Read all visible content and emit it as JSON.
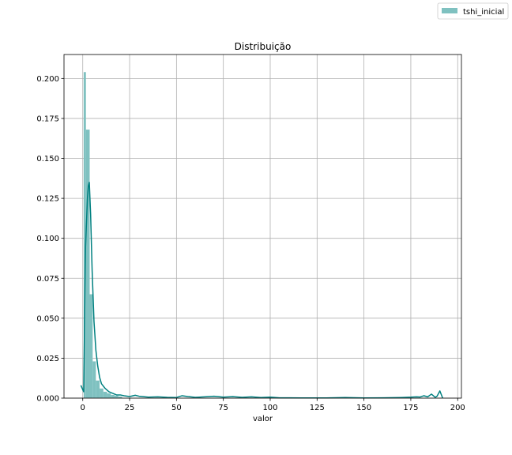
{
  "chart_data": {
    "type": "histogram",
    "title": "Distribuição",
    "xlabel": "valor",
    "ylabel": "",
    "xlim": [
      -10,
      202
    ],
    "ylim": [
      0,
      0.215
    ],
    "xticks": [
      0,
      25,
      50,
      75,
      100,
      125,
      150,
      175,
      200
    ],
    "yticks": [
      0.0,
      0.025,
      0.05,
      0.075,
      0.1,
      0.125,
      0.15,
      0.175,
      0.2
    ],
    "ytick_labels": [
      "0.000",
      "0.025",
      "0.050",
      "0.075",
      "0.100",
      "0.125",
      "0.150",
      "0.175",
      "0.200"
    ],
    "grid": true,
    "legend_position": "top-right (outside axes)",
    "colors": {
      "bar": "#7fc1c0",
      "line": "#008080"
    },
    "series": [
      {
        "name": "tshi_inicial",
        "bins": [
          {
            "x0": 0.5,
            "x1": 1.7,
            "value": 0.204
          },
          {
            "x0": 1.7,
            "x1": 3.7,
            "value": 0.168
          },
          {
            "x0": 3.7,
            "x1": 5.3,
            "value": 0.065
          },
          {
            "x0": 5.3,
            "x1": 7.0,
            "value": 0.023
          },
          {
            "x0": 7.0,
            "x1": 9.0,
            "value": 0.011
          },
          {
            "x0": 9.0,
            "x1": 11.0,
            "value": 0.006
          },
          {
            "x0": 11.0,
            "x1": 13.0,
            "value": 0.004
          },
          {
            "x0": 13.0,
            "x1": 15.0,
            "value": 0.003
          },
          {
            "x0": 15.0,
            "x1": 17.0,
            "value": 0.002
          },
          {
            "x0": 17.0,
            "x1": 19.0,
            "value": 0.0015
          },
          {
            "x0": 19.0,
            "x1": 21.0,
            "value": 0.001
          }
        ],
        "kde": {
          "x": [
            -1,
            0.5,
            1.5,
            2.5,
            3.0,
            3.5,
            4.2,
            5.0,
            6.0,
            7.0,
            8.0,
            9.0,
            10.0,
            12.0,
            14.0,
            16.0,
            18.0,
            20.0,
            22.0,
            25.0,
            28.0,
            30.0,
            35.0,
            40.0,
            45.0,
            50.0,
            53.0,
            56.0,
            60.0,
            65.0,
            70.0,
            75.0,
            80.0,
            85.0,
            90.0,
            95.0,
            100.0,
            105.0,
            110.0,
            120.0,
            130.0,
            140.0,
            150.0,
            160.0,
            170.0,
            175.0,
            178.0,
            180.0,
            182.0,
            184.0,
            186.0,
            188.0,
            189.0,
            190.5,
            192.0
          ],
          "y": [
            0.008,
            0.004,
            0.095,
            0.125,
            0.133,
            0.135,
            0.115,
            0.08,
            0.048,
            0.03,
            0.02,
            0.013,
            0.009,
            0.006,
            0.004,
            0.003,
            0.002,
            0.002,
            0.0015,
            0.001,
            0.0018,
            0.0012,
            0.0006,
            0.0008,
            0.0005,
            0.0004,
            0.0015,
            0.001,
            0.0005,
            0.0008,
            0.0012,
            0.0006,
            0.0009,
            0.0005,
            0.0008,
            0.0004,
            0.0006,
            0.0002,
            0.0002,
            0.0001,
            0.0001,
            0.0004,
            0.0001,
            0.0002,
            0.0004,
            0.0006,
            0.0008,
            0.0007,
            0.0015,
            0.0008,
            0.0025,
            0.0005,
            0.0012,
            0.0045,
            0.0
          ]
        }
      }
    ]
  }
}
